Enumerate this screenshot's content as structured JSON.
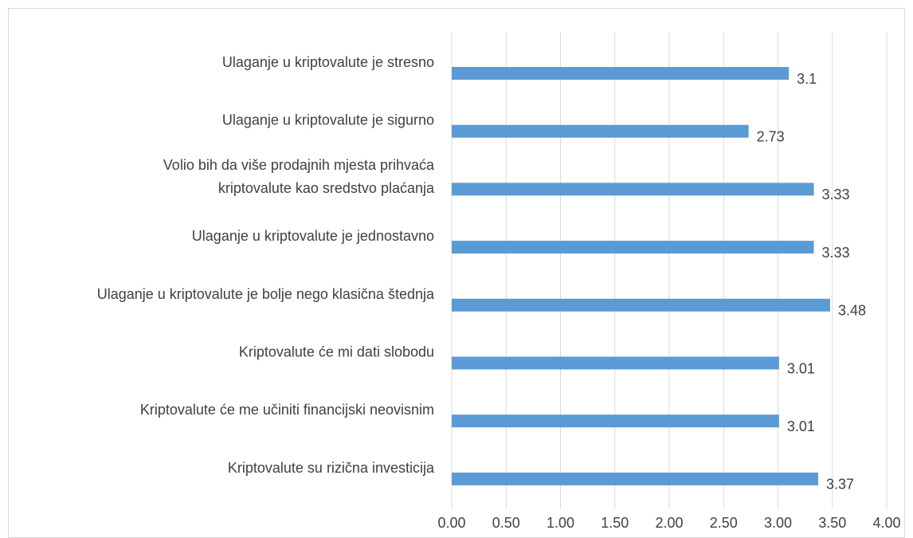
{
  "chart_data": {
    "type": "barh",
    "categories": [
      "Ulaganje u kriptovalute je stresno",
      "Ulaganje u kriptovalute je sigurno",
      "Volio bih da više prodajnih mjesta prihvaća\nkriptovalute kao sredstvo plaćanja",
      "Ulaganje u kriptovalute je jednostavno",
      "Ulaganje u kriptovalute je bolje nego klasična štednja",
      "Kriptovalute će mi dati slobodu",
      "Kriptovalute će me učiniti financijski neovisnim",
      "Kriptovalute su rizična investicija"
    ],
    "values": [
      3.1,
      2.73,
      3.33,
      3.33,
      3.48,
      3.01,
      3.01,
      3.37
    ],
    "color": "#5b9bd5",
    "xlim": [
      0,
      4
    ],
    "xticks": [
      {
        "value": 0,
        "label": "0.00"
      },
      {
        "value": 0.5,
        "label": "0.50"
      },
      {
        "value": 1,
        "label": "1.00"
      },
      {
        "value": 1.5,
        "label": "1.50"
      },
      {
        "value": 2,
        "label": "2.00"
      },
      {
        "value": 2.5,
        "label": "2.50"
      },
      {
        "value": 3,
        "label": "3.00"
      },
      {
        "value": 3.5,
        "label": "3.50"
      },
      {
        "value": 4,
        "label": "4.00"
      }
    ],
    "grid": true
  }
}
